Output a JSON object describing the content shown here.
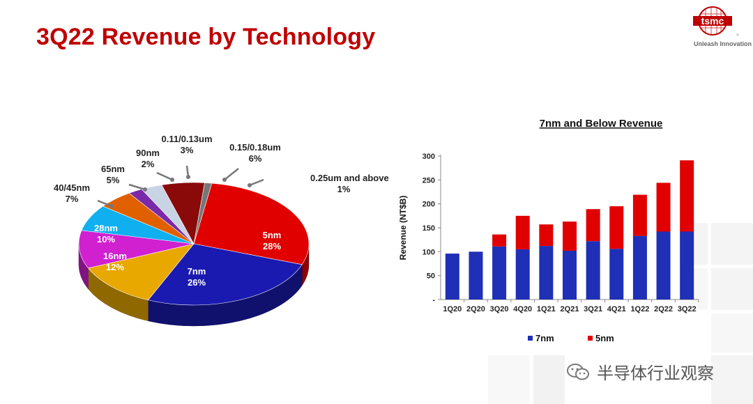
{
  "slide": {
    "title": "3Q22 Revenue by Technology",
    "logo_text": "tsmc",
    "logo_tagline": "Unleash Innovation",
    "watermark": "半导体行业观察"
  },
  "colors": {
    "title": "#c00000",
    "7nm_bar": "#1f2fb6",
    "5nm_bar": "#e00000"
  },
  "chart_data": [
    {
      "type": "pie",
      "title": "",
      "slices": [
        {
          "label": "5nm",
          "value": 28,
          "display": "28%",
          "color": "#e00000"
        },
        {
          "label": "7nm",
          "value": 26,
          "display": "26%",
          "color": "#1a1ab0"
        },
        {
          "label": "16nm",
          "value": 12,
          "display": "12%",
          "color": "#e8a800"
        },
        {
          "label": "28nm",
          "value": 10,
          "display": "10%",
          "color": "#d020d0"
        },
        {
          "label": "40/45nm",
          "value": 7,
          "display": "7%",
          "color": "#10b0f0"
        },
        {
          "label": "65nm",
          "value": 5,
          "display": "5%",
          "color": "#e06000"
        },
        {
          "label": "90nm",
          "value": 2,
          "display": "2%",
          "color": "#7a2aa8"
        },
        {
          "label": "0.11/0.13um",
          "value": 3,
          "display": "3%",
          "color": "#c8d4e4"
        },
        {
          "label": "0.15/0.18um",
          "value": 6,
          "display": "6%",
          "color": "#8a0a0a"
        },
        {
          "label": "0.25um and above",
          "value": 1,
          "display": "1%",
          "color": "#777777"
        }
      ]
    },
    {
      "type": "bar",
      "stacked": true,
      "title": "7nm and Below Revenue",
      "ylabel": "Revenue (NT$B)",
      "xlabel": "",
      "ylim": [
        0,
        300
      ],
      "yticks": [
        "-",
        "50",
        "100",
        "150",
        "200",
        "250",
        "300"
      ],
      "categories": [
        "1Q20",
        "2Q20",
        "3Q20",
        "4Q20",
        "1Q21",
        "2Q21",
        "3Q21",
        "4Q21",
        "1Q22",
        "2Q22",
        "3Q22"
      ],
      "series": [
        {
          "name": "7nm",
          "color": "#1f2fb6",
          "values": [
            96,
            100,
            111,
            105,
            112,
            102,
            122,
            106,
            133,
            142,
            142
          ]
        },
        {
          "name": "5nm",
          "color": "#e00000",
          "values": [
            0,
            0,
            25,
            70,
            45,
            61,
            67,
            89,
            86,
            102,
            149
          ]
        }
      ],
      "legend": "bottom"
    }
  ]
}
